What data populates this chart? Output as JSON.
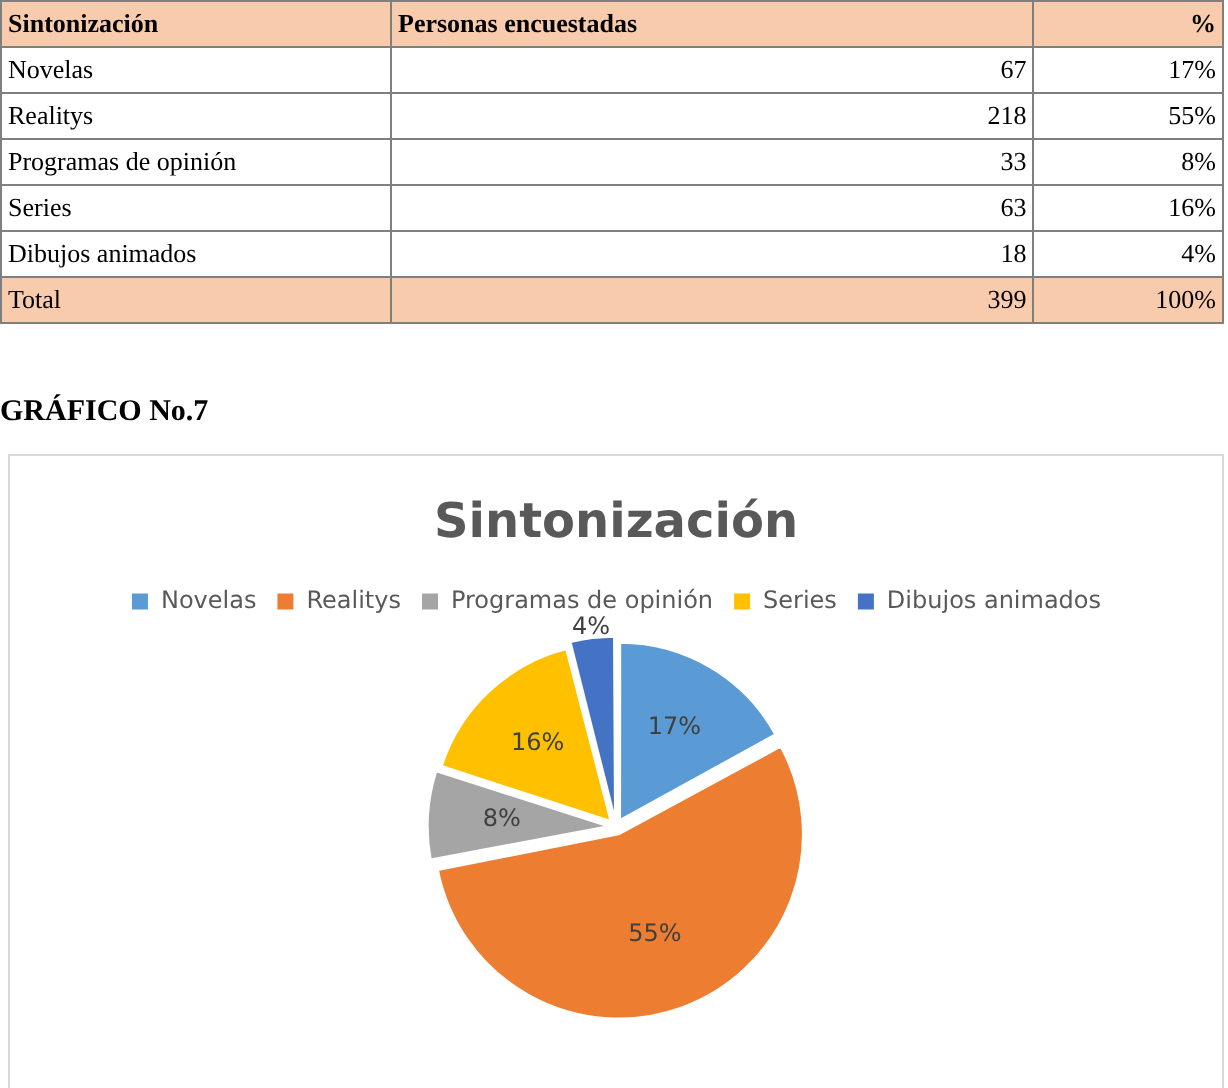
{
  "chart_data": {
    "type": "pie",
    "title": "Sintonización",
    "categories": [
      "Novelas",
      "Realitys",
      "Programas de opinión",
      "Series",
      "Dibujos animados"
    ],
    "values": [
      17,
      55,
      8,
      16,
      4
    ],
    "value_labels": [
      "17%",
      "55%",
      "8%",
      "16%",
      "4%"
    ],
    "colors": [
      "#5b9bd5",
      "#ed7d31",
      "#a5a5a5",
      "#ffc000",
      "#4472c4"
    ],
    "legend": "top",
    "annotations": [
      "Sintonización",
      "Personas encuestadas",
      "%",
      "67",
      "218",
      "33",
      "63",
      "18",
      "Total",
      "399",
      "100%",
      "GRÁFICO No.7"
    ]
  }
}
